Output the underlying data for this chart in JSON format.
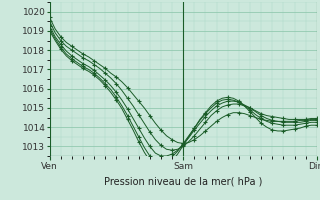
{
  "title": "Pression niveau de la mer( hPa )",
  "bg_color": "#cce8dc",
  "grid_major_color": "#88c4a8",
  "grid_minor_color": "#aad8c4",
  "line_color": "#1a5c28",
  "xlim": [
    0,
    48
  ],
  "ylim": [
    1012.5,
    1020.5
  ],
  "yticks": [
    1013,
    1014,
    1015,
    1016,
    1017,
    1018,
    1019,
    1020
  ],
  "xtick_positions": [
    0,
    24,
    48
  ],
  "xtick_labels": [
    "Ven",
    "Sam",
    "Dim"
  ],
  "series": [
    [
      1019.7,
      1019.1,
      1018.7,
      1018.4,
      1018.2,
      1018.0,
      1017.8,
      1017.65,
      1017.45,
      1017.25,
      1017.05,
      1016.8,
      1016.6,
      1016.35,
      1016.05,
      1015.7,
      1015.35,
      1015.0,
      1014.6,
      1014.2,
      1013.85,
      1013.55,
      1013.35,
      1013.2,
      1013.15,
      1013.2,
      1013.35,
      1013.55,
      1013.8,
      1014.05,
      1014.3,
      1014.5,
      1014.65,
      1014.75,
      1014.75,
      1014.7,
      1014.6,
      1014.5,
      1014.4,
      1014.35,
      1014.3,
      1014.3,
      1014.3,
      1014.3,
      1014.3,
      1014.35,
      1014.35,
      1014.4,
      1014.4
    ],
    [
      1019.5,
      1018.9,
      1018.5,
      1018.2,
      1018.0,
      1017.8,
      1017.6,
      1017.45,
      1017.25,
      1017.05,
      1016.8,
      1016.55,
      1016.25,
      1015.9,
      1015.5,
      1015.1,
      1014.65,
      1014.2,
      1013.75,
      1013.35,
      1013.05,
      1012.85,
      1012.8,
      1012.85,
      1013.0,
      1013.25,
      1013.55,
      1013.9,
      1014.25,
      1014.6,
      1014.85,
      1015.05,
      1015.15,
      1015.2,
      1015.2,
      1015.1,
      1015.0,
      1014.85,
      1014.7,
      1014.6,
      1014.55,
      1014.5,
      1014.45,
      1014.4,
      1014.4,
      1014.4,
      1014.4,
      1014.45,
      1014.45
    ],
    [
      1019.25,
      1018.7,
      1018.3,
      1017.95,
      1017.7,
      1017.5,
      1017.3,
      1017.15,
      1016.95,
      1016.7,
      1016.45,
      1016.15,
      1015.8,
      1015.4,
      1014.95,
      1014.45,
      1013.95,
      1013.45,
      1013.0,
      1012.65,
      1012.5,
      1012.5,
      1012.6,
      1012.8,
      1013.1,
      1013.45,
      1013.85,
      1014.2,
      1014.55,
      1014.85,
      1015.1,
      1015.25,
      1015.35,
      1015.35,
      1015.3,
      1015.15,
      1015.0,
      1014.8,
      1014.6,
      1014.45,
      1014.35,
      1014.3,
      1014.25,
      1014.25,
      1014.25,
      1014.25,
      1014.3,
      1014.35,
      1014.35
    ],
    [
      1019.1,
      1018.6,
      1018.15,
      1017.8,
      1017.55,
      1017.35,
      1017.15,
      1017.0,
      1016.8,
      1016.55,
      1016.25,
      1015.95,
      1015.55,
      1015.1,
      1014.6,
      1014.05,
      1013.5,
      1012.95,
      1012.5,
      1012.2,
      1012.1,
      1012.2,
      1012.45,
      1012.75,
      1013.15,
      1013.55,
      1013.95,
      1014.35,
      1014.7,
      1015.0,
      1015.25,
      1015.4,
      1015.45,
      1015.4,
      1015.3,
      1015.1,
      1014.9,
      1014.65,
      1014.45,
      1014.3,
      1014.2,
      1014.15,
      1014.1,
      1014.1,
      1014.1,
      1014.15,
      1014.2,
      1014.25,
      1014.25
    ],
    [
      1019.0,
      1018.5,
      1018.05,
      1017.7,
      1017.45,
      1017.25,
      1017.05,
      1016.9,
      1016.7,
      1016.45,
      1016.15,
      1015.8,
      1015.4,
      1014.95,
      1014.4,
      1013.85,
      1013.25,
      1012.7,
      1012.25,
      1011.95,
      1011.85,
      1012.0,
      1012.25,
      1012.6,
      1013.05,
      1013.5,
      1013.95,
      1014.4,
      1014.75,
      1015.1,
      1015.35,
      1015.5,
      1015.55,
      1015.5,
      1015.35,
      1015.1,
      1014.8,
      1014.5,
      1014.2,
      1014.0,
      1013.85,
      1013.8,
      1013.8,
      1013.85,
      1013.9,
      1013.95,
      1014.05,
      1014.1,
      1014.1
    ]
  ],
  "marker_every": 2,
  "title_fontsize": 7,
  "tick_fontsize": 6.5
}
